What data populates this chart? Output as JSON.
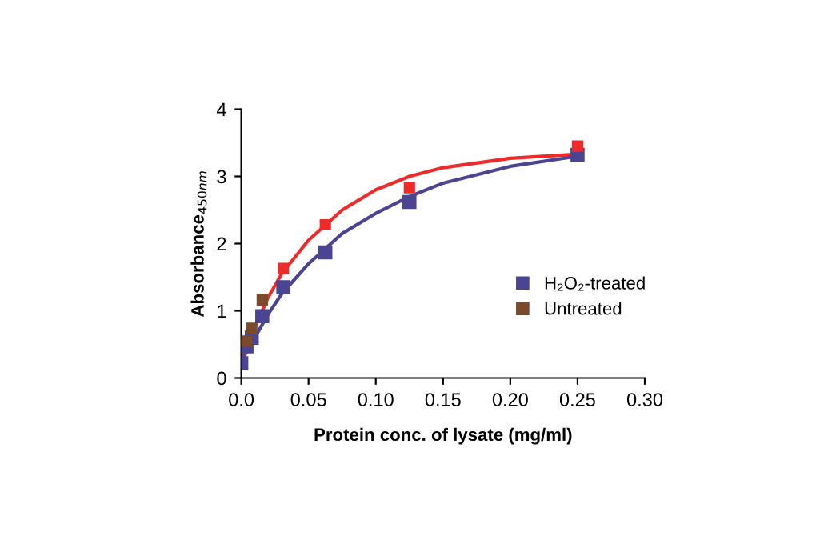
{
  "chart_data": {
    "type": "scatter",
    "xlabel": "Protein conc. of lysate (mg/ml)",
    "ylabel": "Absorbance$_{450nm}$",
    "xlim": [
      0,
      0.3
    ],
    "ylim": [
      0,
      4
    ],
    "xticks": [
      {
        "value": 0,
        "label": "0.0"
      },
      0.05,
      {
        "value": 0.1,
        "label": "0.10"
      },
      0.15,
      {
        "value": 0.2,
        "label": "0.20"
      },
      0.25,
      {
        "value": 0.3,
        "label": "0.30"
      }
    ],
    "yticks": [
      0,
      1,
      2,
      3,
      4
    ],
    "grid": false,
    "legend": "right",
    "marker": "square",
    "series": [
      {
        "type": "line",
        "marker": "none",
        "color": "#ee2a2a",
        "x": [
          0,
          0.01,
          0.02,
          0.03,
          0.05,
          0.075,
          0.1,
          0.125,
          0.15,
          0.2,
          0.25
        ],
        "values": [
          0.3,
          0.75,
          1.2,
          1.55,
          2.05,
          2.5,
          2.8,
          3.0,
          3.13,
          3.27,
          3.33
        ]
      },
      {
        "type": "line",
        "marker": "none",
        "color": "#4b4493",
        "x": [
          0,
          0.01,
          0.02,
          0.03,
          0.05,
          0.075,
          0.1,
          0.125,
          0.15,
          0.2,
          0.25
        ],
        "values": [
          0.25,
          0.6,
          0.95,
          1.25,
          1.7,
          2.15,
          2.45,
          2.7,
          2.9,
          3.15,
          3.3
        ]
      },
      {
        "name": "H₂O₂-treated",
        "color": "#4b4493",
        "x": [
          0,
          0.0039,
          0.0078,
          0.0156,
          0.03125,
          0.0625,
          0.125,
          0.25
        ],
        "values": [
          0.22,
          0.47,
          0.6,
          0.92,
          1.35,
          1.87,
          2.62,
          3.32
        ]
      },
      {
        "name": "Untreated",
        "color": "#7b4a2a",
        "x": [
          0.0039,
          0.0078,
          0.0156,
          0.03125,
          0.0625,
          0.125,
          0.25
        ],
        "values": [
          0.55,
          0.74,
          1.16,
          1.63,
          2.28,
          2.83,
          3.45
        ],
        "colors": [
          "#7b4a2a",
          "#7b4a2a",
          "#7b4a2a",
          "#ee2a2a",
          "#ee2a2a",
          "#ee2a2a",
          "#ee2a2a"
        ]
      }
    ]
  }
}
